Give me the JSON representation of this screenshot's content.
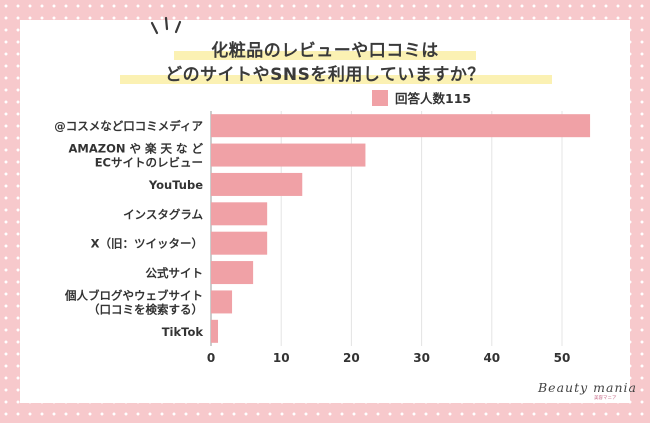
{
  "title_lines": [
    "化粧品のレビューや口コミは",
    "どのサイトやSNSを利用していますか？"
  ],
  "legend": {
    "label": "回答人数115",
    "color": "#f0a1a6"
  },
  "logo": {
    "text": "Beauty mania",
    "sub": "美容マニア"
  },
  "chart_data": {
    "type": "bar",
    "orientation": "horizontal",
    "title": "化粧品のレビューや口コミは どのサイトやSNSを利用していますか？",
    "categories": [
      [
        "@コスメなど口コミメディア"
      ],
      [
        "AMAZON や 楽 天 な ど",
        "ECサイトのレビュー"
      ],
      [
        "YouTube"
      ],
      [
        "インスタグラム"
      ],
      [
        "X（旧：ツイッター）"
      ],
      [
        "公式サイト"
      ],
      [
        "個人ブログやウェブサイト",
        "（口コミを検索する）"
      ],
      [
        "TikTok"
      ]
    ],
    "series": [
      {
        "name": "回答人数115",
        "values": [
          54,
          22,
          13,
          8,
          8,
          6,
          3,
          1
        ]
      }
    ],
    "xlim": [
      0,
      55
    ],
    "xticks": [
      0,
      10,
      20,
      30,
      40,
      50
    ],
    "grid": true,
    "bar_color": "#f0a1a6",
    "legend_position": "top-right"
  }
}
